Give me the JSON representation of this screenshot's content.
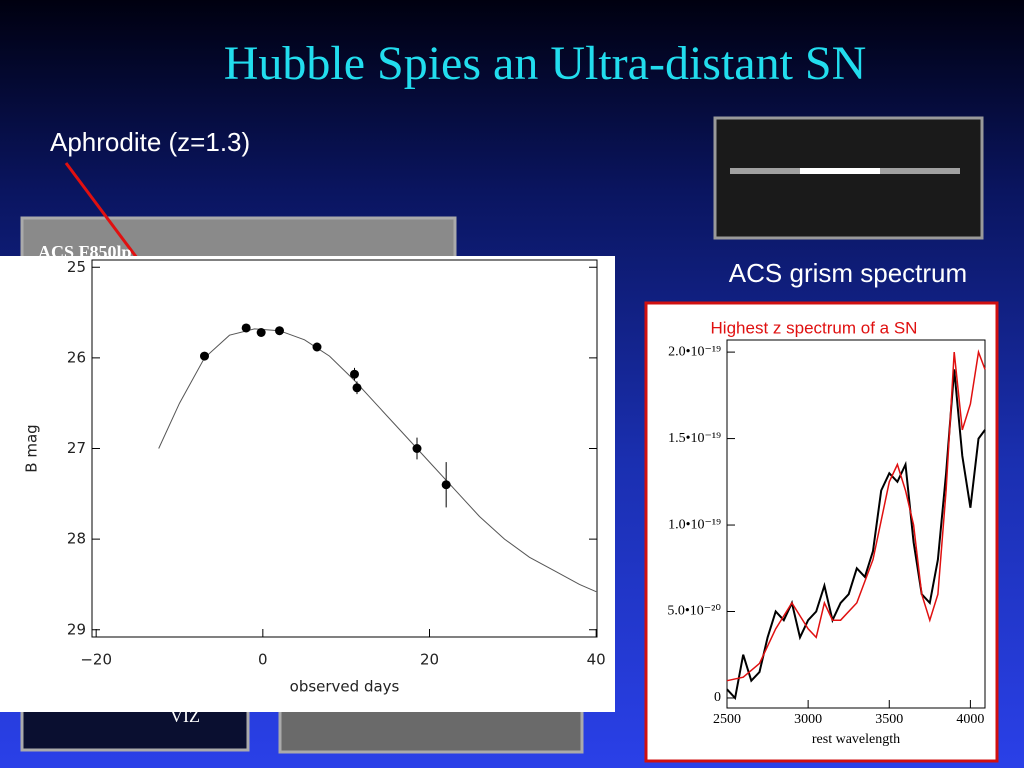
{
  "title": "Hubble Spies an Ultra-distant SN",
  "labels": {
    "target": "Aphrodite (z=1.3)",
    "image_filter": "ACS F850lp",
    "grism": "ACS grism spectrum",
    "spectrum_note": "Highest z spectrum of a SN",
    "viz": "VIZ"
  },
  "chart_data": [
    {
      "type": "scatter",
      "xlabel": "observed days",
      "ylabel": "B mag",
      "xlim": [
        -20.5,
        40.1
      ],
      "xticks": [
        {
          "value": -20,
          "label": "−20"
        },
        0,
        20,
        40
      ],
      "ylim": [
        24.92,
        29.08
      ],
      "yticks": [
        25,
        26,
        27,
        28,
        29
      ],
      "invert_y": true,
      "color": "#000000",
      "x": [
        -7,
        -2,
        -0.2,
        2,
        6.5,
        11,
        11.3,
        18.5,
        22
      ],
      "values": [
        25.98,
        25.67,
        25.72,
        25.7,
        25.88,
        26.18,
        26.33,
        27.0,
        27.4
      ],
      "errors": [
        0.04,
        0.03,
        0.03,
        0.03,
        0.05,
        0.07,
        0.07,
        0.12,
        0.25
      ],
      "curve_x": [
        -12.5,
        -10,
        -7,
        -4,
        -1,
        2,
        5,
        8,
        11,
        14,
        17,
        20,
        23,
        26,
        29,
        32,
        35,
        38,
        40
      ],
      "curve_values": [
        27.0,
        26.5,
        26.0,
        25.75,
        25.68,
        25.7,
        25.8,
        25.98,
        26.25,
        26.55,
        26.85,
        27.15,
        27.45,
        27.75,
        28.0,
        28.2,
        28.35,
        28.5,
        28.58
      ]
    },
    {
      "type": "line",
      "xlabel": "rest wavelength",
      "xlim": [
        2500,
        4090
      ],
      "xticks": [
        2500,
        3000,
        3500,
        4000
      ],
      "ylim": [
        -5.8e-21,
        2.07e-19
      ],
      "yticks": [
        0,
        {
          "value": 5e-20,
          "label": "5.0•10⁻²⁰"
        },
        {
          "value": 1e-19,
          "label": "1.0•10⁻¹⁹"
        },
        {
          "value": 1.5e-19,
          "label": "1.5•10⁻¹⁹"
        },
        {
          "value": 2e-19,
          "label": "2.0•10⁻¹⁹"
        }
      ],
      "series": [
        {
          "color": "#000000",
          "x": [
            2500,
            2550,
            2600,
            2650,
            2700,
            2750,
            2800,
            2850,
            2900,
            2950,
            3000,
            3050,
            3100,
            3150,
            3200,
            3250,
            3300,
            3350,
            3400,
            3450,
            3500,
            3550,
            3600,
            3650,
            3700,
            3750,
            3800,
            3850,
            3900,
            3950,
            4000,
            4050,
            4090
          ],
          "values": [
            5e-21,
            0,
            2.5e-20,
            1e-20,
            1.5e-20,
            3.5e-20,
            5e-20,
            4.5e-20,
            5.5e-20,
            3.5e-20,
            4.5e-20,
            5e-20,
            6.5e-20,
            4.5e-20,
            5.5e-20,
            6e-20,
            7.5e-20,
            7e-20,
            8.5e-20,
            1.2e-19,
            1.3e-19,
            1.25e-19,
            1.35e-19,
            9e-20,
            6e-20,
            5.5e-20,
            8e-20,
            1.3e-19,
            1.9e-19,
            1.4e-19,
            1.1e-19,
            1.5e-19,
            1.55e-19
          ]
        },
        {
          "color": "#e01010",
          "x": [
            2500,
            2600,
            2700,
            2800,
            2900,
            3000,
            3050,
            3100,
            3150,
            3200,
            3300,
            3400,
            3500,
            3550,
            3600,
            3650,
            3700,
            3750,
            3800,
            3850,
            3900,
            3950,
            4000,
            4050,
            4090
          ],
          "values": [
            1e-20,
            1.2e-20,
            2e-20,
            4e-20,
            5.5e-20,
            4e-20,
            3.5e-20,
            5.5e-20,
            4.5e-20,
            4.5e-20,
            5.5e-20,
            8e-20,
            1.25e-19,
            1.35e-19,
            1.2e-19,
            1e-19,
            6e-20,
            4.5e-20,
            6e-20,
            1.2e-19,
            2e-19,
            1.55e-19,
            1.7e-19,
            2e-19,
            1.9e-19
          ]
        }
      ]
    }
  ]
}
